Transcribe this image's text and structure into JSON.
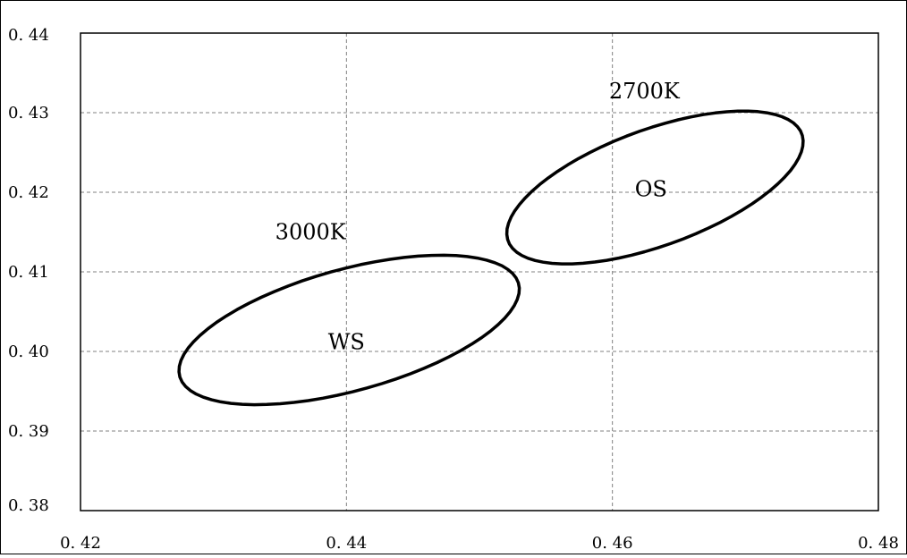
{
  "chart_data": {
    "type": "scatter",
    "title": "",
    "xlabel": "",
    "ylabel": "",
    "xlim": [
      0.42,
      0.48
    ],
    "ylim": [
      0.38,
      0.44
    ],
    "grid": true,
    "x_ticks": [
      0.42,
      0.44,
      0.46,
      0.48
    ],
    "y_ticks": [
      0.38,
      0.39,
      0.4,
      0.41,
      0.42,
      0.43,
      0.44
    ],
    "x_tick_labels": [
      "0. 42",
      "0. 44",
      "0. 46",
      "0. 48"
    ],
    "y_tick_labels": [
      "0. 38",
      "0. 39",
      "0. 40",
      "0. 41",
      "0. 42",
      "0. 43",
      "0. 44"
    ],
    "series": [
      {
        "name": "WS",
        "center": [
          0.4402,
          0.4027
        ],
        "semi_major": 0.0142,
        "semi_minor": 0.0071,
        "angle_deg": 30
      },
      {
        "name": "OS",
        "center": [
          0.4632,
          0.4206
        ],
        "semi_major": 0.0132,
        "semi_minor": 0.0065,
        "angle_deg": 38
      }
    ],
    "annotations": [
      {
        "text": "3000K",
        "x": 0.4373,
        "y": 0.4141
      },
      {
        "text": "WS",
        "x": 0.44,
        "y": 0.4003
      },
      {
        "text": "2700K",
        "x": 0.4624,
        "y": 0.4318
      },
      {
        "text": "OS",
        "x": 0.4629,
        "y": 0.4195
      }
    ]
  }
}
